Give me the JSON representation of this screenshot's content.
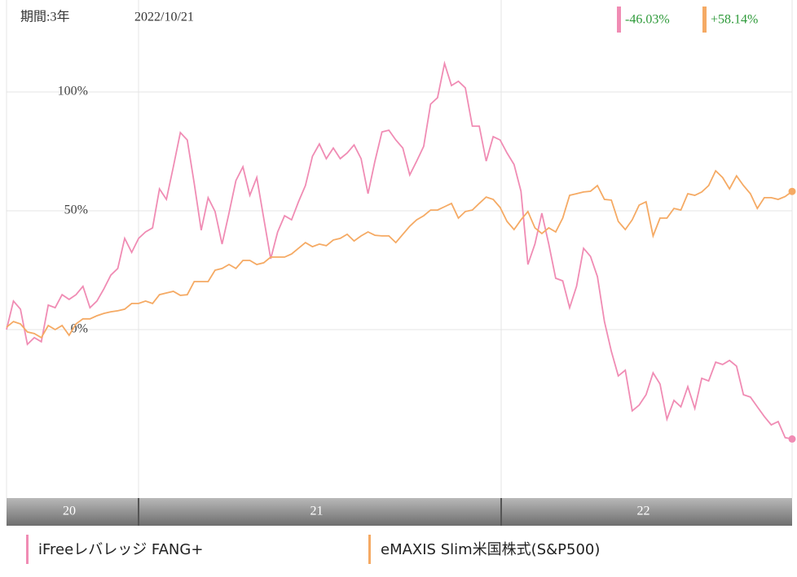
{
  "chart_data": {
    "type": "line",
    "period_label": "期間:3年",
    "date": "2022/10/21",
    "x_labels": [
      "20",
      "21",
      "22"
    ],
    "ylim": [
      -70.9,
      138.7
    ],
    "yticks": [
      {
        "value": 100,
        "label": "100%"
      },
      {
        "value": 50,
        "label": "50%"
      },
      {
        "value": 0,
        "label": "0%"
      }
    ],
    "grid": true,
    "series": [
      {
        "name": "iFreeレバレッジ FANG+",
        "color": "#f08cb4",
        "value_label": "-46.03%",
        "values": [
          0,
          12,
          8.6,
          -6.2,
          -3.4,
          -5.1,
          10.3,
          9.2,
          14.7,
          12.7,
          14.7,
          18.2,
          9.2,
          12,
          17.1,
          22.9,
          25.7,
          38.4,
          32.5,
          38.4,
          41.1,
          42.8,
          59.2,
          54.8,
          68.5,
          82.9,
          79.8,
          61.6,
          41.8,
          55.5,
          49.7,
          36,
          49,
          62.7,
          68.5,
          56.5,
          64,
          46.9,
          29.8,
          41.1,
          47.9,
          46.2,
          53.8,
          60.6,
          72.9,
          78.1,
          71.9,
          76.4,
          71.9,
          74.3,
          77.7,
          71.9,
          57.2,
          70.9,
          83.2,
          83.9,
          79.8,
          76.4,
          65.1,
          70.9,
          77.1,
          94.9,
          97.6,
          112,
          102.7,
          104.5,
          101.7,
          85.6,
          85.6,
          70.9,
          81.2,
          79.8,
          74.3,
          69.5,
          58.2,
          27.4,
          36,
          49,
          36,
          21.6,
          20.5,
          9.2,
          18.2,
          34.2,
          30.8,
          22.3,
          3.4,
          -9.2,
          -19.5,
          -17.1,
          -34.2,
          -31.8,
          -27.4,
          -18.2,
          -22.9,
          -37.7,
          -29.8,
          -32.5,
          -24,
          -33.2,
          -20.5,
          -21.6,
          -13.7,
          -14.7,
          -13,
          -15.4,
          -27.4,
          -28.4,
          -32.5,
          -36.6,
          -40.1,
          -38.7,
          -45.5,
          -46.03
        ]
      },
      {
        "name": "eMAXIS Slim米国株式(S&P500)",
        "color": "#f5aa64",
        "value_label": "+58.14%",
        "values": [
          1,
          3.4,
          2.4,
          -1,
          -1.7,
          -3.4,
          1.7,
          0,
          1.7,
          -2.4,
          2.4,
          4.5,
          4.5,
          5.8,
          6.8,
          7.5,
          7.9,
          8.6,
          11,
          11,
          12,
          11,
          14.7,
          15.4,
          16.1,
          14.4,
          14.7,
          20.2,
          20.2,
          20.2,
          25,
          25.7,
          27.4,
          25.7,
          29.1,
          29.1,
          27.4,
          28.1,
          30.5,
          30.5,
          30.5,
          31.8,
          34.2,
          36.6,
          34.9,
          36,
          35.3,
          37.7,
          38.4,
          40.1,
          37.3,
          39.4,
          41.1,
          39.7,
          39.4,
          39.4,
          36.6,
          40.1,
          43.5,
          46.2,
          47.9,
          50.3,
          50.3,
          51.7,
          53.1,
          46.9,
          49.7,
          50.3,
          53.1,
          55.8,
          54.8,
          51.4,
          45.5,
          42.1,
          46.2,
          49.7,
          42.8,
          40.4,
          42.8,
          41.1,
          46.9,
          56.5,
          57.2,
          57.9,
          58.2,
          60.6,
          54.8,
          54.5,
          45.5,
          42.1,
          46.2,
          52.4,
          53.8,
          39.4,
          46.9,
          46.9,
          51,
          50.3,
          57.2,
          56.5,
          57.9,
          60.6,
          66.8,
          64,
          59.2,
          64.7,
          60.6,
          57.2,
          51,
          55.5,
          55.5,
          54.8,
          56,
          58.14
        ]
      }
    ]
  }
}
